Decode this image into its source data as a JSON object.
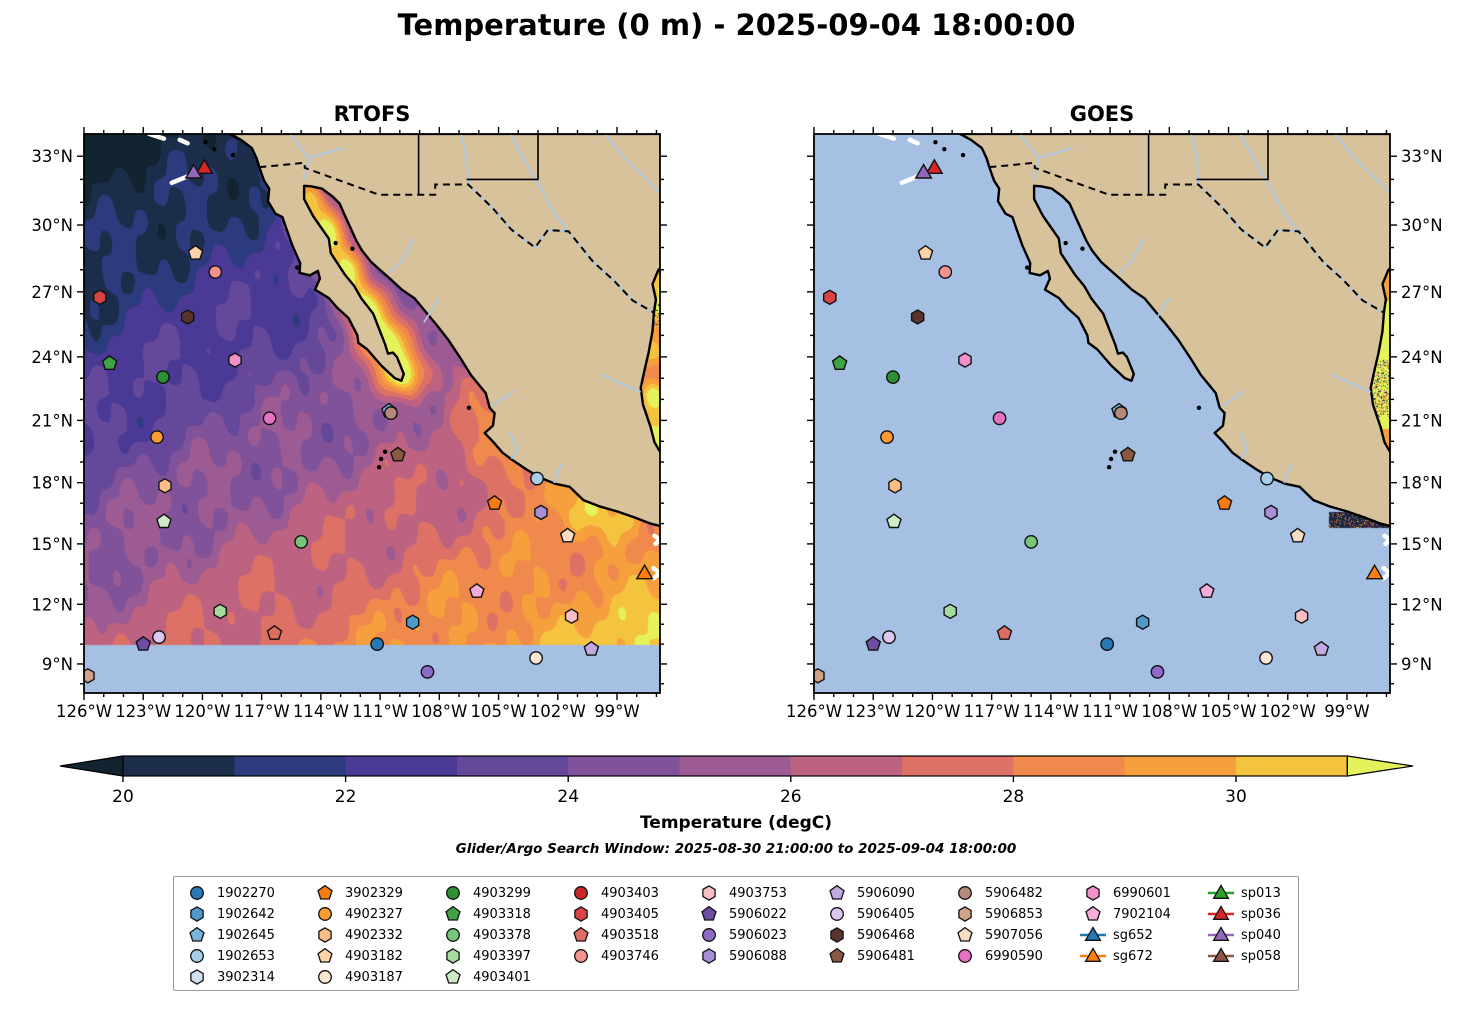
{
  "figure": {
    "title": "Temperature (0 m) - 2025-09-04 18:00:00"
  },
  "panels": [
    {
      "title": "RTOFS"
    },
    {
      "title": "GOES"
    }
  ],
  "axes": {
    "lon_tick_labels": [
      "126°W",
      "123°W",
      "120°W",
      "117°W",
      "114°W",
      "111°W",
      "108°W",
      "105°W",
      "102°W",
      "99°W"
    ],
    "lon_tick_values": [
      126,
      123,
      120,
      117,
      114,
      111,
      108,
      105,
      102,
      99
    ],
    "lat_tick_labels": [
      "33°N",
      "30°N",
      "27°N",
      "24°N",
      "21°N",
      "18°N",
      "15°N",
      "12°N",
      "9°N"
    ],
    "lat_tick_values": [
      33,
      30,
      27,
      24,
      21,
      18,
      15,
      12,
      9
    ]
  },
  "colorbar": {
    "label": "Temperature (degC)",
    "subtitle": "Glider/Argo Search Window: 2025-08-30 21:00:00 to 2025-09-04 18:00:00",
    "tick_values": [
      20,
      22,
      24,
      26,
      28,
      30
    ],
    "bands": [
      {
        "max": 20,
        "color": "#112430",
        "label": "<20"
      },
      {
        "min": 20,
        "max": 21,
        "color": "#1B2D49"
      },
      {
        "min": 21,
        "max": 22,
        "color": "#2B3B7D"
      },
      {
        "min": 22,
        "max": 23,
        "color": "#4A3A96"
      },
      {
        "min": 23,
        "max": 24,
        "color": "#66489B"
      },
      {
        "min": 24,
        "max": 25,
        "color": "#80529A"
      },
      {
        "min": 25,
        "max": 26,
        "color": "#9C5B93"
      },
      {
        "min": 26,
        "max": 27,
        "color": "#BD6381"
      },
      {
        "min": 27,
        "max": 28,
        "color": "#DD7166"
      },
      {
        "min": 28,
        "max": 29,
        "color": "#F0894C"
      },
      {
        "min": 29,
        "max": 30,
        "color": "#F5A03C"
      },
      {
        "min": 30,
        "max": 31,
        "color": "#F4C43F"
      },
      {
        "min": 31,
        "color": "#E4F25C",
        "label": ">31"
      }
    ]
  },
  "map_colors": {
    "ocean_no_data": "#A5C0E2",
    "land": "#D8C29B",
    "river": "#A8C8E8",
    "coastline": "#000000"
  },
  "stations": {
    "1902270": {
      "shape": "circle",
      "color": "#2878B8"
    },
    "1902642": {
      "shape": "hexagon",
      "color": "#4D9AC8"
    },
    "1902645": {
      "shape": "pentagon",
      "color": "#77B5D9"
    },
    "1902653": {
      "shape": "circle",
      "color": "#A6CEE8"
    },
    "3902314": {
      "shape": "hexagon",
      "color": "#CFE1F2"
    },
    "3902329": {
      "shape": "pentagon",
      "color": "#F67C10"
    },
    "4902327": {
      "shape": "circle",
      "color": "#FB9B34"
    },
    "4902332": {
      "shape": "hexagon",
      "color": "#FDBE85"
    },
    "4903182": {
      "shape": "pentagon",
      "color": "#FDD3A8"
    },
    "4903187": {
      "shape": "circle",
      "color": "#FDE8D2"
    },
    "4903299": {
      "shape": "circle",
      "color": "#2C9135"
    },
    "4903318": {
      "shape": "pentagon",
      "color": "#3DA345"
    },
    "4903378": {
      "shape": "circle",
      "color": "#76C578"
    },
    "4903397": {
      "shape": "hexagon",
      "color": "#A5DC9E"
    },
    "4903401": {
      "shape": "pentagon",
      "color": "#CCEBC6"
    },
    "4903403": {
      "shape": "circle",
      "color": "#C92627"
    },
    "4903405": {
      "shape": "hexagon",
      "color": "#D94343"
    },
    "4903518": {
      "shape": "pentagon",
      "color": "#E06D61"
    },
    "4903746": {
      "shape": "circle",
      "color": "#F2938D"
    },
    "4903753": {
      "shape": "hexagon",
      "color": "#F8C0C5"
    },
    "5906022": {
      "shape": "pentagon",
      "color": "#6F4DA3"
    },
    "5906023": {
      "shape": "circle",
      "color": "#8F69C8"
    },
    "5906088": {
      "shape": "hexagon",
      "color": "#A98FD6"
    },
    "5906090": {
      "shape": "pentagon",
      "color": "#C3A9E1"
    },
    "5906405": {
      "shape": "circle",
      "color": "#DCC7F1"
    },
    "5906468": {
      "shape": "hexagon",
      "color": "#59332C"
    },
    "5906481": {
      "shape": "pentagon",
      "color": "#8A5742"
    },
    "5906482": {
      "shape": "circle",
      "color": "#B5887B"
    },
    "5906853": {
      "shape": "hexagon",
      "color": "#D0A287"
    },
    "5907056": {
      "shape": "pentagon",
      "color": "#F8DCC4"
    },
    "6990590": {
      "shape": "circle",
      "color": "#E671C2"
    },
    "6990601": {
      "shape": "hexagon",
      "color": "#F291C7"
    },
    "7902104": {
      "shape": "pentagon",
      "color": "#F6ACD8"
    },
    "sg652": {
      "shape": "glider",
      "color": "#1F77B4"
    },
    "sg672": {
      "shape": "glider",
      "color": "#FF7F0E"
    },
    "sp013": {
      "shape": "glider",
      "color": "#2CA02C"
    },
    "sp036": {
      "shape": "glider",
      "color": "#D62728"
    },
    "sp040": {
      "shape": "glider",
      "color": "#9467BD"
    },
    "sp058": {
      "shape": "glider",
      "color": "#8C564B"
    }
  },
  "legend_columns": [
    [
      "1902270",
      "1902642",
      "1902645",
      "1902653",
      "3902314"
    ],
    [
      "3902329",
      "4902327",
      "4902332",
      "4903182",
      "4903187"
    ],
    [
      "4903299",
      "4903318",
      "4903378",
      "4903397",
      "4903401"
    ],
    [
      "4903403",
      "4903405",
      "4903518",
      "4903746"
    ],
    [
      "4903753",
      "5906022",
      "5906023",
      "5906088"
    ],
    [
      "5906090",
      "5906405",
      "5906468",
      "5906481"
    ],
    [
      "5906482",
      "5906853",
      "5907056",
      "6990590"
    ],
    [
      "6990601",
      "7902104",
      "sg652",
      "sg672"
    ],
    [
      "sp013",
      "sp036",
      "sp040",
      "sp058"
    ]
  ],
  "chart_data": [
    {
      "type": "heatmap",
      "title": "RTOFS",
      "field": "sea_surface_temperature_degC",
      "lon_range_degW": [
        126.25,
        96.78
      ],
      "lat_range_degN": [
        7.5,
        33.95
      ],
      "value_range_degC": [
        19,
        31.5
      ],
      "no_data_below_lat_degN": 10,
      "notes": "Cold (<20 degC) water NW off California; purple/mauve mid-basin; orange 27-30 degC south and east; yellow 30-31 degC in Gulf of California, along SE Mexican coast and Gulf of Mexico edge strip; flat light-blue no-data band south of 10N"
    },
    {
      "type": "heatmap",
      "title": "GOES",
      "field": "sea_surface_temperature_degC",
      "lon_range_degW": [
        126.25,
        96.78
      ],
      "lat_range_degN": [
        7.5,
        33.95
      ],
      "notes": "Ocean almost entirely missing data (light blue); warm yellow strip at east edge (Gulf of Mexico 19-28N); dark speckled SST patch along coast near 16N, 99.9-96.8W"
    }
  ],
  "markers": [
    {
      "id": "1902270",
      "lon_degW": 111.15,
      "lat_degN": 10.0
    },
    {
      "id": "1902642",
      "lon_degW": 109.35,
      "lat_degN": 11.1
    },
    {
      "id": "1902645",
      "lon_degW": 110.55,
      "lat_degN": 21.45
    },
    {
      "id": "1902653",
      "lon_degW": 103.05,
      "lat_degN": 18.2
    },
    {
      "id": "3902329",
      "lon_degW": 105.2,
      "lat_degN": 17.0
    },
    {
      "id": "4902327",
      "lon_degW": 122.3,
      "lat_degN": 20.2
    },
    {
      "id": "4902332",
      "lon_degW": 121.9,
      "lat_degN": 17.85
    },
    {
      "id": "4903182",
      "lon_degW": 120.35,
      "lat_degN": 28.75
    },
    {
      "id": "4903187",
      "lon_degW": 103.1,
      "lat_degN": 9.3
    },
    {
      "id": "4903299",
      "lon_degW": 122.0,
      "lat_degN": 23.05
    },
    {
      "id": "4903318",
      "lon_degW": 124.7,
      "lat_degN": 23.7
    },
    {
      "id": "4903378",
      "lon_degW": 115.0,
      "lat_degN": 15.1
    },
    {
      "id": "4903397",
      "lon_degW": 119.1,
      "lat_degN": 11.65
    },
    {
      "id": "4903401",
      "lon_degW": 121.95,
      "lat_degN": 16.1
    },
    {
      "id": "4903405",
      "lon_degW": 125.2,
      "lat_degN": 26.75
    },
    {
      "id": "4903518",
      "lon_degW": 116.35,
      "lat_degN": 10.55
    },
    {
      "id": "4903746",
      "lon_degW": 119.35,
      "lat_degN": 27.9
    },
    {
      "id": "4903753",
      "lon_degW": 101.3,
      "lat_degN": 11.4
    },
    {
      "id": "5906022",
      "lon_degW": 123.0,
      "lat_degN": 10.0
    },
    {
      "id": "5906023",
      "lon_degW": 108.6,
      "lat_degN": 8.6
    },
    {
      "id": "5906088",
      "lon_degW": 102.85,
      "lat_degN": 16.55
    },
    {
      "id": "5906090",
      "lon_degW": 100.3,
      "lat_degN": 9.75
    },
    {
      "id": "5906405",
      "lon_degW": 122.2,
      "lat_degN": 10.35
    },
    {
      "id": "5906468",
      "lon_degW": 120.75,
      "lat_degN": 25.85
    },
    {
      "id": "5906481",
      "lon_degW": 110.1,
      "lat_degN": 19.35
    },
    {
      "id": "5906482",
      "lon_degW": 110.45,
      "lat_degN": 21.35
    },
    {
      "id": "5906853",
      "lon_degW": 125.8,
      "lat_degN": 8.4
    },
    {
      "id": "5907056",
      "lon_degW": 101.5,
      "lat_degN": 15.4
    },
    {
      "id": "6990590",
      "lon_degW": 116.6,
      "lat_degN": 21.1
    },
    {
      "id": "6990601",
      "lon_degW": 118.35,
      "lat_degN": 23.85
    },
    {
      "id": "7902104",
      "lon_degW": 106.1,
      "lat_degN": 12.65
    },
    {
      "id": "sg672",
      "lon_degW": 97.6,
      "lat_degN": 13.55
    },
    {
      "id": "sp036",
      "lon_degW": 119.9,
      "lat_degN": 32.5
    },
    {
      "id": "sp040",
      "lon_degW": 120.45,
      "lat_degN": 32.3
    }
  ],
  "white_tracks": [
    [
      [
        122.7,
        33.95
      ],
      [
        121.95,
        33.75
      ]
    ],
    [
      [
        121.15,
        33.7
      ],
      [
        120.75,
        33.55
      ]
    ],
    [
      [
        121.55,
        31.85
      ],
      [
        120.6,
        32.18
      ]
    ],
    [
      [
        97.1,
        15.4
      ],
      [
        96.82,
        15.2
      ],
      [
        97.05,
        15.0
      ]
    ],
    [
      [
        97.15,
        13.8
      ],
      [
        96.82,
        13.55
      ],
      [
        97.15,
        13.3
      ]
    ]
  ]
}
